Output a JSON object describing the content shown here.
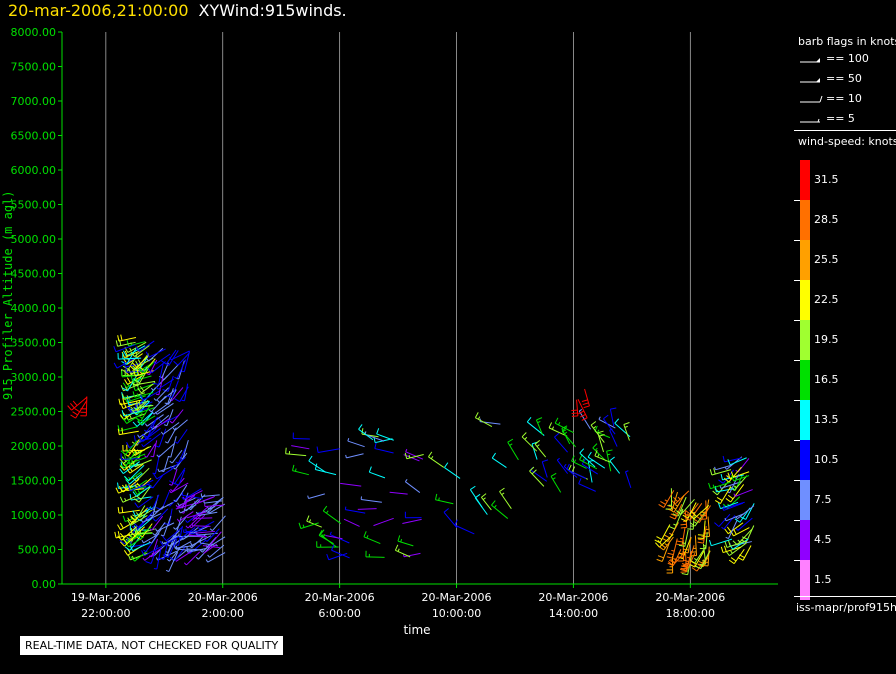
{
  "header": {
    "datetime": "20-mar-2006,21:00:00",
    "title": "XYWind:915winds."
  },
  "warning": "REAL-TIME DATA, NOT CHECKED FOR QUALITY",
  "legend": {
    "barb_title": "barb flags in knots",
    "barbs": [
      {
        "label": "== 100",
        "kind": "flag"
      },
      {
        "label": "== 50",
        "kind": "flag"
      },
      {
        "label": "== 10",
        "kind": "full"
      },
      {
        "label": "== 5",
        "kind": "half"
      }
    ],
    "speed_title": "wind-speed: knots",
    "speed_scale": [
      {
        "label": "31.5",
        "color": "#ff0000"
      },
      {
        "label": "28.5",
        "color": "#ff7000"
      },
      {
        "label": "25.5",
        "color": "#ffa000"
      },
      {
        "label": "22.5",
        "color": "#ffff00"
      },
      {
        "label": "19.5",
        "color": "#a0ff30"
      },
      {
        "label": "16.5",
        "color": "#00e000"
      },
      {
        "label": "13.5",
        "color": "#00ffff"
      },
      {
        "label": "10.5",
        "color": "#0000ff"
      },
      {
        "label": "7.5",
        "color": "#6f8fff"
      },
      {
        "label": "4.5",
        "color": "#9000ff"
      },
      {
        "label": "1.5",
        "color": "#ff80ff"
      }
    ],
    "source": "iss-mapr/prof915h"
  },
  "chart_data": {
    "type": "scatter",
    "xlabel": "time",
    "ylabel": "915 Profiler Altitude (m agl)",
    "ylim": [
      0,
      8000
    ],
    "yticks": [
      "0.00",
      "500.00",
      "1000.00",
      "1500.00",
      "2000.00",
      "2500.00",
      "3000.00",
      "3500.00",
      "4000.00",
      "4500.00",
      "5000.00",
      "5500.00",
      "6000.00",
      "6500.00",
      "7000.00",
      "7500.00",
      "8000.00"
    ],
    "xlim": [
      "19-Mar-2006 20:30",
      "20-Mar-2006 21:00"
    ],
    "xticks": [
      {
        "date": "19-Mar-2006",
        "time": "22:00:00",
        "hour": 1.5
      },
      {
        "date": "20-Mar-2006",
        "time": "2:00:00",
        "hour": 5.5
      },
      {
        "date": "20-Mar-2006",
        "time": "6:00:00",
        "hour": 9.5
      },
      {
        "date": "20-Mar-2006",
        "time": "10:00:00",
        "hour": 13.5
      },
      {
        "date": "20-Mar-2006",
        "time": "14:00:00",
        "hour": 17.5
      },
      {
        "date": "20-Mar-2006",
        "time": "18:00:00",
        "hour": 21.5
      }
    ],
    "grid": "vertical",
    "wind_barbs": {
      "units": "knots",
      "clusters": [
        {
          "t_start": 0.85,
          "t_end": 0.85,
          "alt_min": 2600,
          "alt_max": 2950,
          "speed_min": 30,
          "speed_max": 32,
          "dir": 200,
          "count": 3
        },
        {
          "t_start": 2.5,
          "t_end": 3.2,
          "alt_min": 400,
          "alt_max": 3600,
          "speed_min": 10,
          "speed_max": 24,
          "dir": 240,
          "count": 140
        },
        {
          "t_start": 3.2,
          "t_end": 4.4,
          "alt_min": 450,
          "alt_max": 3500,
          "speed_min": 5,
          "speed_max": 12,
          "dir": 220,
          "count": 110
        },
        {
          "t_start": 4.4,
          "t_end": 5.6,
          "alt_min": 450,
          "alt_max": 1400,
          "speed_min": 3,
          "speed_max": 10,
          "dir": 250,
          "count": 60
        },
        {
          "t_start": 8.3,
          "t_end": 12.5,
          "alt_min": 300,
          "alt_max": 2200,
          "speed_min": 3,
          "speed_max": 20,
          "dir": 280,
          "count": 45
        },
        {
          "t_start": 12.8,
          "t_end": 15.8,
          "alt_min": 500,
          "alt_max": 2700,
          "speed_min": 8,
          "speed_max": 20,
          "dir": 300,
          "count": 14
        },
        {
          "t_start": 16.2,
          "t_end": 19.5,
          "alt_min": 1300,
          "alt_max": 2300,
          "speed_min": 8,
          "speed_max": 22,
          "dir": 320,
          "count": 40
        },
        {
          "t_start": 17.5,
          "t_end": 18.1,
          "alt_min": 2650,
          "alt_max": 2900,
          "speed_min": 30,
          "speed_max": 32,
          "dir": 160,
          "count": 3
        },
        {
          "t_start": 20.8,
          "t_end": 22.2,
          "alt_min": 400,
          "alt_max": 1400,
          "speed_min": 18,
          "speed_max": 30,
          "dir": 200,
          "count": 50
        },
        {
          "t_start": 22.8,
          "t_end": 23.7,
          "alt_min": 500,
          "alt_max": 1850,
          "speed_min": 5,
          "speed_max": 24,
          "dir": 230,
          "count": 45
        }
      ]
    }
  }
}
